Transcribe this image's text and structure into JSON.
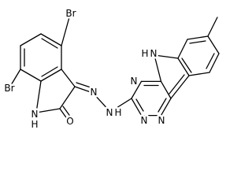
{
  "atoms": [
    {
      "label": "Br"
    },
    {
      "label": "Br"
    },
    {
      "label": "N"
    },
    {
      "label": "H"
    },
    {
      "label": "O"
    },
    {
      "label": "N"
    },
    {
      "label": "N"
    },
    {
      "label": "H"
    },
    {
      "label": "N"
    },
    {
      "label": "N"
    },
    {
      "label": "N"
    },
    {
      "label": "H"
    },
    {
      "label": "N"
    }
  ]
}
